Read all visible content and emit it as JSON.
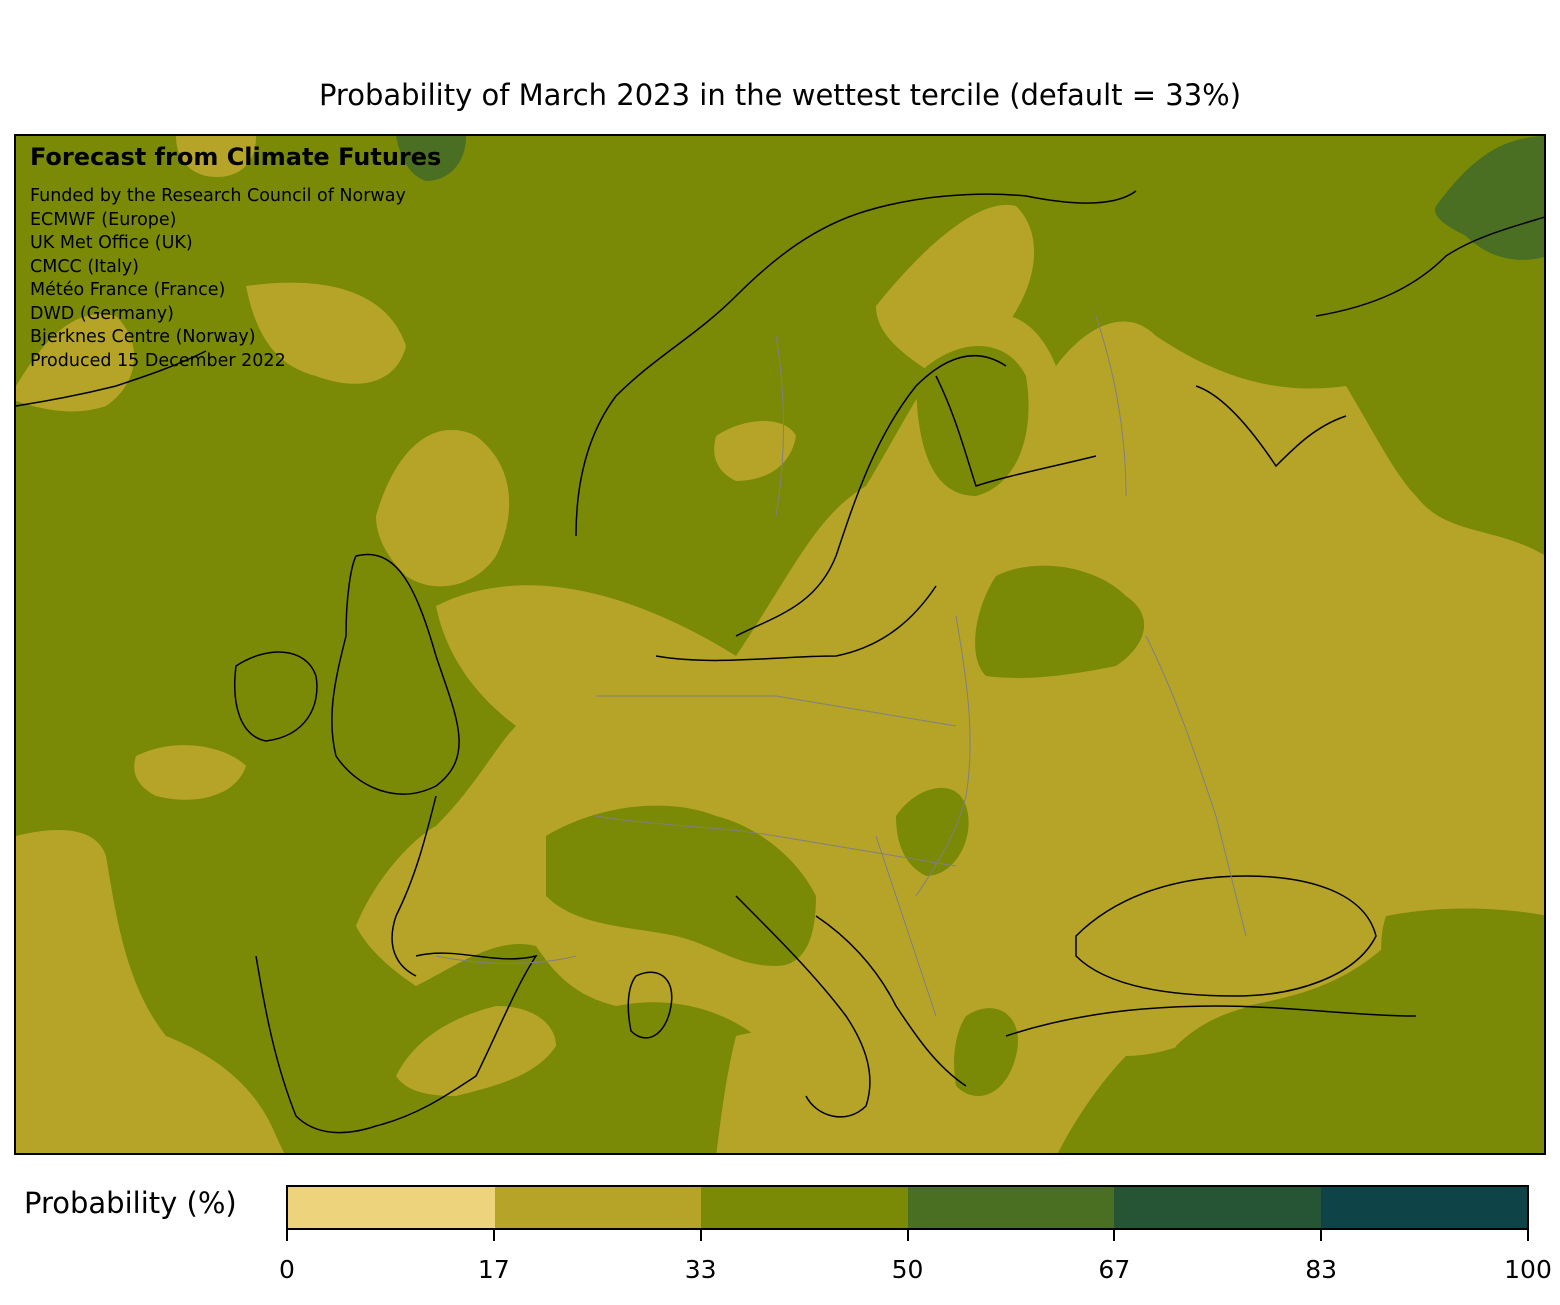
{
  "title": "Probability of March 2023 in the wettest tercile (default = 33%)",
  "credits": {
    "heading": "Forecast from Climate Futures",
    "lines": [
      "Funded by the Research Council of Norway",
      "ECMWF (Europe)",
      "UK Met Office (UK)",
      "CMCC (Italy)",
      "Météo France (France)",
      "DWD (Germany)",
      "Bjerknes Centre (Norway)",
      "Produced 15 December 2022"
    ]
  },
  "colorbar": {
    "label": "Probability (%)",
    "colors": [
      "#edd37b",
      "#b6a428",
      "#7a8a06",
      "#4a6e22",
      "#265536",
      "#0e4447"
    ],
    "ticks": [
      "0",
      "17",
      "33",
      "50",
      "67",
      "83",
      "100"
    ]
  },
  "map": {
    "region": "Europe",
    "background_class_color": "#7a8a06"
  }
}
